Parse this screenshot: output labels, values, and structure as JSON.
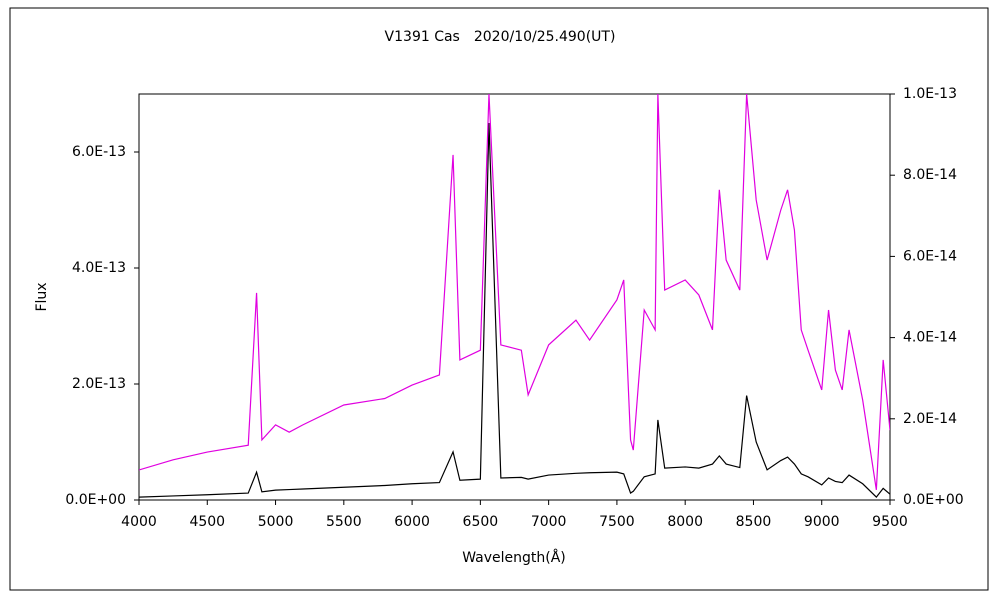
{
  "chart_data": {
    "type": "line",
    "title": "V1391 Cas　2020/10/25.490(UT)",
    "x_label": "Wavelength(Å)",
    "y_label": "Flux",
    "x": [
      4000,
      4250,
      4500,
      4800,
      4861,
      4900,
      5000,
      5100,
      5200,
      5500,
      5800,
      6000,
      6200,
      6300,
      6350,
      6500,
      6563,
      6650,
      6800,
      6850,
      7000,
      7200,
      7300,
      7500,
      7550,
      7600,
      7620,
      7700,
      7780,
      7800,
      7850,
      8000,
      8100,
      8200,
      8250,
      8300,
      8400,
      8450,
      8520,
      8600,
      8700,
      8750,
      8800,
      8850,
      8900,
      9000,
      9050,
      9100,
      9150,
      9200,
      9300,
      9400,
      9450,
      9500
    ],
    "series": [
      {
        "color": "#000000",
        "axis": "y",
        "values": [
          5e-15,
          7e-15,
          9e-15,
          1.2e-14,
          4.8e-14,
          1.4e-14,
          1.7e-14,
          1.8e-14,
          1.9e-14,
          2.2e-14,
          2.5e-14,
          2.8e-14,
          3e-14,
          8.3e-14,
          3.4e-14,
          3.6e-14,
          6.5e-13,
          3.8e-14,
          3.9e-14,
          3.6e-14,
          4.3e-14,
          4.6e-14,
          4.7e-14,
          4.8e-14,
          4.5e-14,
          1.2e-14,
          1.5e-14,
          4e-14,
          4.5e-14,
          1.38e-13,
          5.5e-14,
          5.7e-14,
          5.5e-14,
          6.2e-14,
          7.6e-14,
          6.2e-14,
          5.6e-14,
          1.8e-13,
          1e-13,
          5.2e-14,
          6.8e-14,
          7.4e-14,
          6.2e-14,
          4.5e-14,
          4e-14,
          2.6e-14,
          3.8e-14,
          3.2e-14,
          3e-14,
          4.3e-14,
          2.8e-14,
          5e-15,
          2e-14,
          1e-14
        ]
      },
      {
        "color": "#e000e0",
        "axis": "y2",
        "values": [
          7.4e-15,
          9.9e-15,
          1.18e-14,
          1.35e-14,
          5.1e-14,
          1.48e-14,
          1.85e-14,
          1.67e-14,
          1.85e-14,
          2.34e-14,
          2.5e-14,
          2.83e-14,
          3.08e-14,
          8.5e-14,
          3.45e-14,
          3.69e-14,
          1e-13,
          3.82e-14,
          3.69e-14,
          2.59e-14,
          3.82e-14,
          4.43e-14,
          3.94e-14,
          4.93e-14,
          5.42e-14,
          1.48e-14,
          1.23e-14,
          4.68e-14,
          4.19e-14,
          1e-13,
          5.17e-14,
          5.42e-14,
          5.05e-14,
          4.19e-14,
          7.64e-14,
          5.91e-14,
          5.17e-14,
          1e-13,
          7.39e-14,
          5.91e-14,
          7.14e-14,
          7.64e-14,
          6.65e-14,
          4.19e-14,
          3.69e-14,
          2.71e-14,
          4.68e-14,
          3.2e-14,
          2.71e-14,
          4.19e-14,
          2.46e-14,
          2.5e-15,
          3.45e-14,
          1.72e-14
        ]
      }
    ],
    "xlim": [
      4000,
      9500
    ],
    "xticks": [
      4000,
      4500,
      5000,
      5500,
      6000,
      6500,
      7000,
      7500,
      8000,
      8500,
      9000,
      9500
    ],
    "ylim": [
      0,
      7e-13
    ],
    "yticks": [
      {
        "value": 0,
        "label": "0.0E+00"
      },
      {
        "value": 2e-13,
        "label": "2.0E-13"
      },
      {
        "value": 4e-13,
        "label": "4.0E-13"
      },
      {
        "value": 6e-13,
        "label": "6.0E-13"
      }
    ],
    "y2lim": [
      0,
      1e-13
    ],
    "y2ticks": [
      {
        "value": 0,
        "label": "0.0E+00"
      },
      {
        "value": 2e-14,
        "label": "2.0E-14"
      },
      {
        "value": 4e-14,
        "label": "4.0E-14"
      },
      {
        "value": 6e-14,
        "label": "6.0E-14"
      },
      {
        "value": 8e-14,
        "label": "8.0E-14"
      },
      {
        "value": 1e-13,
        "label": "1.0E-13"
      }
    ],
    "y2_color": "#e000e0"
  }
}
